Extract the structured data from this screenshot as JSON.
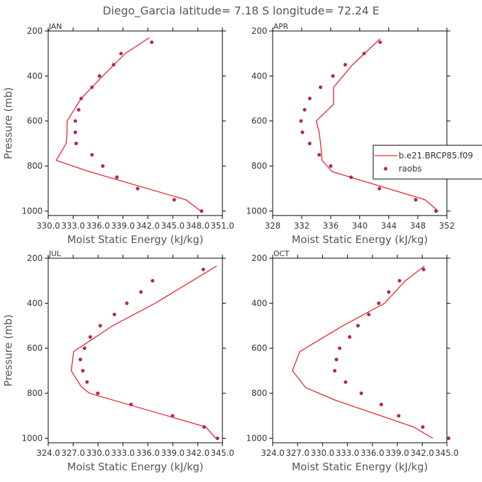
{
  "title": "Diego_Garcia  latitude= 7.18 S longitude= 72.24 E",
  "colors": {
    "model": "#e8232a",
    "obs": "#b0295a",
    "axis": "#000000"
  },
  "legend": {
    "model_label": "b.e21.BRCP85.f09",
    "obs_label": "raobs",
    "placement": "right-middle"
  },
  "chart_data": [
    {
      "type": "line",
      "panel": "JAN",
      "xlabel": "Moist Static Energy (kJ/kg)",
      "ylabel": "Pressure (mb)",
      "xlim": [
        330.0333,
        351.0
      ],
      "xticks": [
        330.0333,
        333.0333,
        336.0333,
        339.0333,
        342.0333,
        345.0333,
        348.0333,
        351.0
      ],
      "xtick_labels": [
        "330.0",
        "333.0",
        "336.0",
        "339.0",
        "342.0",
        "345.0",
        "348.0",
        "351.0"
      ],
      "ylim": [
        1020,
        200
      ],
      "yticks": [
        200,
        400,
        600,
        800,
        1000
      ],
      "ytick_labels": [
        "200",
        "400",
        "600",
        "800",
        "1000"
      ],
      "series": [
        {
          "name": "b.e21.BRCP85.f09",
          "kind": "line",
          "x": [
            348.4,
            346.6,
            335.0,
            331.0,
            332.2,
            332.3,
            332.3,
            334.0,
            336.6,
            339.3,
            342.2
          ],
          "y": [
            1000,
            950,
            825,
            775,
            700,
            650,
            600,
            500,
            400,
            300,
            230
          ]
        },
        {
          "name": "raobs",
          "kind": "scatter",
          "x": [
            348.5,
            345.2,
            340.8,
            338.3,
            336.6,
            335.3,
            333.4,
            333.3,
            333.3,
            333.7,
            334.0,
            335.3,
            336.2,
            337.9,
            338.8,
            342.5
          ],
          "y": [
            1000,
            950,
            900,
            850,
            800,
            750,
            700,
            650,
            600,
            550,
            500,
            450,
            400,
            350,
            300,
            250
          ]
        }
      ]
    },
    {
      "type": "line",
      "panel": "APR",
      "xlabel": "Moist Static Energy (kJ/kg)",
      "ylabel": "",
      "xlim": [
        328,
        352
      ],
      "xticks": [
        328,
        332,
        336,
        340,
        344,
        348,
        352
      ],
      "xtick_labels": [
        "328",
        "332",
        "336",
        "340",
        "344",
        "348",
        "352"
      ],
      "ylim": [
        1020,
        200
      ],
      "yticks": [
        200,
        400,
        600,
        800,
        1000
      ],
      "ytick_labels": [
        "200",
        "400",
        "600",
        "800",
        "1000"
      ],
      "series": [
        {
          "name": "b.e21.BRCP85.f09",
          "kind": "line",
          "x": [
            350.8,
            349.0,
            336.2,
            334.8,
            334.6,
            334.4,
            334.0,
            336.4,
            336.4,
            339.0,
            342.8
          ],
          "y": [
            1000,
            950,
            825,
            775,
            700,
            650,
            600,
            525,
            450,
            350,
            235
          ]
        },
        {
          "name": "raobs",
          "kind": "scatter",
          "x": [
            350.5,
            347.7,
            342.7,
            338.8,
            336.0,
            334.4,
            333.1,
            332.1,
            331.9,
            332.4,
            333.1,
            334.6,
            336.3,
            338.0,
            340.6,
            342.8
          ],
          "y": [
            1000,
            950,
            900,
            850,
            800,
            750,
            700,
            650,
            600,
            550,
            500,
            450,
            400,
            350,
            300,
            250
          ]
        }
      ]
    },
    {
      "type": "line",
      "panel": "JUL",
      "xlabel": "Moist Static Energy (kJ/kg)",
      "ylabel": "Pressure (mb)",
      "xlim": [
        324.0327,
        345.0
      ],
      "xticks": [
        324.0327,
        327.0333,
        330.0333,
        333.0333,
        336.0333,
        339.0333,
        342.0333,
        345.0
      ],
      "xtick_labels": [
        "324.0",
        "327.0",
        "330.0",
        "333.0",
        "336.0",
        "339.0",
        "342.0",
        "345.0"
      ],
      "ylim": [
        1020,
        200
      ],
      "yticks": [
        200,
        400,
        600,
        800,
        1000
      ],
      "ytick_labels": [
        "200",
        "400",
        "600",
        "800",
        "1000"
      ],
      "series": [
        {
          "name": "b.e21.BRCP85.f09",
          "kind": "line",
          "x": [
            344.2,
            343.0,
            329.0,
            328.0,
            326.8,
            327.1,
            331.8,
            336.9,
            344.3
          ],
          "y": [
            1000,
            950,
            800,
            770,
            700,
            615,
            500,
            400,
            235
          ]
        },
        {
          "name": "raobs",
          "kind": "scatter",
          "x": [
            344.4,
            342.8,
            339.0,
            334.0,
            330.0,
            328.7,
            328.2,
            327.9,
            328.4,
            329.1,
            330.3,
            332.0,
            333.5,
            335.2,
            336.6,
            342.7
          ],
          "y": [
            1000,
            950,
            900,
            850,
            800,
            750,
            700,
            650,
            600,
            550,
            500,
            450,
            400,
            350,
            300,
            250
          ]
        }
      ]
    },
    {
      "type": "line",
      "panel": "OCT",
      "xlabel": "Moist Static Energy (kJ/kg)",
      "ylabel": "",
      "xlim": [
        324.0327,
        345.0
      ],
      "xticks": [
        324.0327,
        327.0333,
        330.0333,
        333.0333,
        336.0333,
        339.0333,
        342.0333,
        345.0
      ],
      "xtick_labels": [
        "324.0",
        "327.0",
        "330.0",
        "333.0",
        "336.0",
        "339.0",
        "342.0",
        "345.0"
      ],
      "ylim": [
        1020,
        200
      ],
      "yticks": [
        200,
        400,
        600,
        800,
        1000
      ],
      "ytick_labels": [
        "200",
        "400",
        "600",
        "800",
        "1000"
      ],
      "series": [
        {
          "name": "b.e21.BRCP85.f09",
          "kind": "line",
          "x": [
            343.3,
            341.0,
            331.5,
            328.0,
            326.4,
            327.3,
            332.5,
            337.5,
            340.0,
            342.3
          ],
          "y": [
            1000,
            950,
            830,
            775,
            700,
            615,
            500,
            400,
            300,
            235
          ]
        },
        {
          "name": "raobs",
          "kind": "scatter",
          "x": [
            345.2,
            342.1,
            339.2,
            337.1,
            334.7,
            332.8,
            331.5,
            331.7,
            332.1,
            333.3,
            334.3,
            335.6,
            336.8,
            338.0,
            339.3,
            342.2
          ],
          "y": [
            1000,
            950,
            900,
            850,
            800,
            750,
            700,
            650,
            600,
            550,
            500,
            450,
            400,
            350,
            300,
            250
          ]
        }
      ]
    }
  ]
}
